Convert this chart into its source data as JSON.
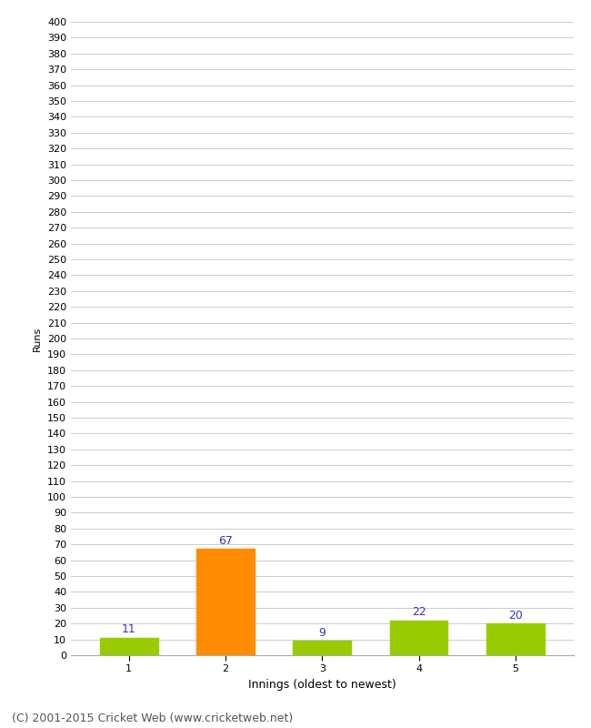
{
  "xlabel": "Innings (oldest to newest)",
  "ylabel": "Runs",
  "categories": [
    "1",
    "2",
    "3",
    "4",
    "5"
  ],
  "values": [
    11,
    67,
    9,
    22,
    20
  ],
  "bar_colors": [
    "#99cc00",
    "#ff8c00",
    "#99cc00",
    "#99cc00",
    "#99cc00"
  ],
  "label_color": "#3333cc",
  "ylim": [
    0,
    400
  ],
  "yticks": [
    0,
    10,
    20,
    30,
    40,
    50,
    60,
    70,
    80,
    90,
    100,
    110,
    120,
    130,
    140,
    150,
    160,
    170,
    180,
    190,
    200,
    210,
    220,
    230,
    240,
    250,
    260,
    270,
    280,
    290,
    300,
    310,
    320,
    330,
    340,
    350,
    360,
    370,
    380,
    390,
    400
  ],
  "background_color": "#ffffff",
  "grid_color": "#cccccc",
  "footer": "(C) 2001-2015 Cricket Web (www.cricketweb.net)",
  "footer_color": "#555555",
  "footer_fontsize": 9,
  "label_fontsize": 9,
  "axis_fontsize": 8,
  "ylabel_fontsize": 8,
  "xlabel_fontsize": 9,
  "bar_width": 0.6
}
